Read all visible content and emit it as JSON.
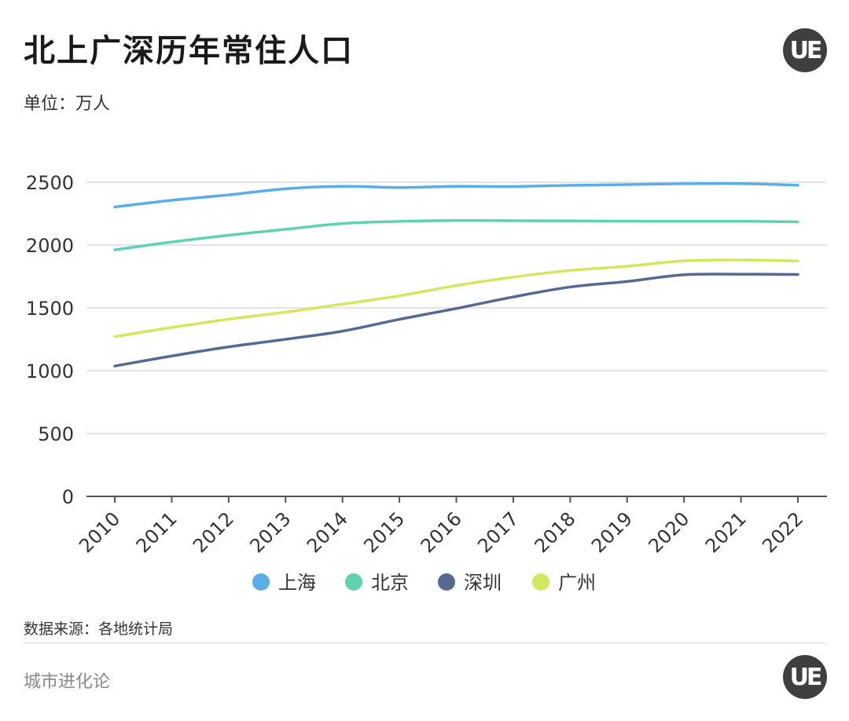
{
  "header": {
    "title": "北上广深历年常住人口",
    "unit": "单位：万人",
    "logo_text": "UE"
  },
  "footer": {
    "source": "数据来源：各地统计局",
    "brand": "城市进化论",
    "logo_text": "UE"
  },
  "colors": {
    "shanghai": "#5aaee8",
    "beijing": "#5fd3ad",
    "shenzhen": "#566a91",
    "guangzhou": "#d3e85c",
    "grid": "#dcdcdc",
    "axis": "#555555"
  },
  "chart_data": {
    "type": "line",
    "title": "北上广深历年常住人口",
    "ylabel": "单位：万人",
    "xlabel": "",
    "x": [
      "2010",
      "2011",
      "2012",
      "2013",
      "2014",
      "2015",
      "2016",
      "2017",
      "2018",
      "2019",
      "2020",
      "2021",
      "2022"
    ],
    "ylim": [
      0,
      2500
    ],
    "yticks": [
      0,
      500,
      1000,
      1500,
      2000,
      2500
    ],
    "grid": true,
    "legend_position": "bottom",
    "series": [
      {
        "name": "上海",
        "color": "#5aaee8",
        "values": [
          2303,
          2356,
          2399,
          2448,
          2467,
          2458,
          2467,
          2466,
          2475,
          2481,
          2488,
          2489,
          2476
        ]
      },
      {
        "name": "北京",
        "color": "#5fd3ad",
        "values": [
          1962,
          2024,
          2078,
          2125,
          2171,
          2188,
          2195,
          2194,
          2192,
          2190,
          2189,
          2189,
          2184
        ]
      },
      {
        "name": "深圳",
        "color": "#566a91",
        "values": [
          1037,
          1117,
          1190,
          1250,
          1315,
          1409,
          1495,
          1587,
          1666,
          1710,
          1763,
          1768,
          1766
        ]
      },
      {
        "name": "广州",
        "color": "#d3e85c",
        "values": [
          1271,
          1344,
          1410,
          1466,
          1530,
          1596,
          1678,
          1745,
          1798,
          1831,
          1874,
          1881,
          1873
        ]
      }
    ]
  }
}
